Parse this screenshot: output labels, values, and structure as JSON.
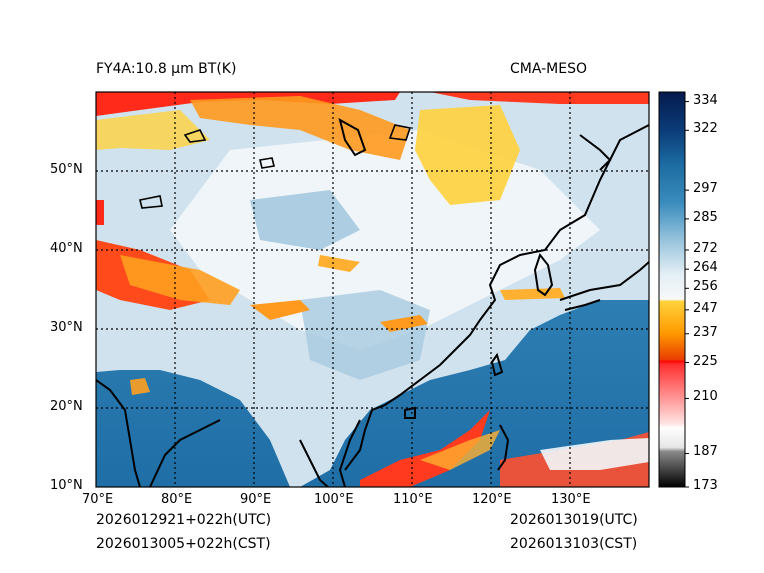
{
  "header": {
    "left_title": "FY4A:10.8 µm BT(K)",
    "right_title": "CMA-MESO"
  },
  "map": {
    "lon_labels": [
      "70°E",
      "80°E",
      "90°E",
      "100°E",
      "110°E",
      "120°E",
      "130°E"
    ],
    "lat_labels": [
      "10°N",
      "20°N",
      "30°N",
      "40°N",
      "50°N"
    ],
    "lon_range": [
      70,
      140
    ],
    "lat_range": [
      10,
      60
    ]
  },
  "colorbar": {
    "min": 173,
    "max": 338,
    "ticks": [
      "334",
      "322",
      "297",
      "285",
      "272",
      "264",
      "256",
      "247",
      "237",
      "225",
      "210",
      "187",
      "173"
    ],
    "colors": {
      "cold_black": "#000000",
      "grey": "#bdbdbd",
      "red": "#ff0000",
      "orange": "#ff8c00",
      "yellow": "#ffd23c",
      "white": "#f8f8f8",
      "light_blue": "#c8dcea",
      "mid_blue": "#2d7fb0",
      "dark_blue": "#08306b",
      "navy": "#041a4d"
    }
  },
  "footer": {
    "left_line1": "2026012921+022h(UTC)",
    "left_line2": "2026013005+022h(CST)",
    "right_line1": "2026013019(UTC)",
    "right_line2": "2026013103(CST)"
  }
}
